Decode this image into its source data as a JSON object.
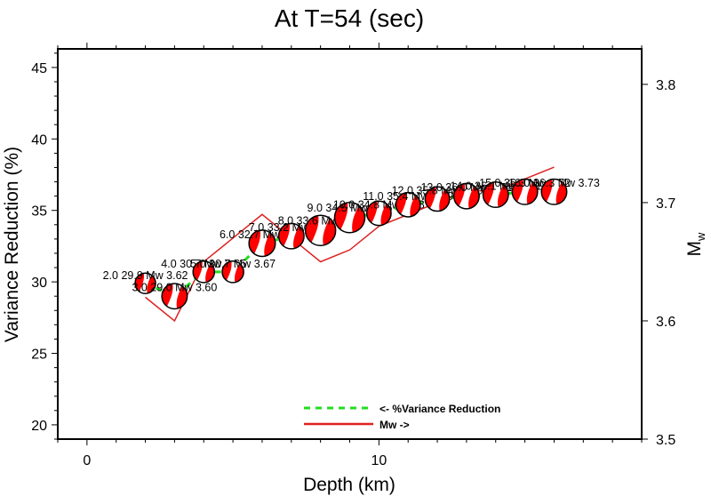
{
  "chart_data": {
    "type": "line",
    "title": "At T=54 (sec)",
    "xlabel": "Depth (km)",
    "ylabel": "Variance Reduction (%)",
    "y2label": "Mw",
    "xlim": [
      -1,
      19
    ],
    "ylim": [
      19,
      46.3
    ],
    "y2lim": [
      3.5,
      3.83
    ],
    "x_ticks": [
      0,
      10
    ],
    "y_ticks": [
      20,
      25,
      30,
      35,
      40,
      45
    ],
    "y2_ticks": [
      "3.5",
      "3.6",
      "3.7",
      "3.8"
    ],
    "grid": false,
    "legend_position": "bottom-center",
    "legend": [
      {
        "label": "<- %Variance Reduction",
        "color": "#22dd22",
        "style": "dashed"
      },
      {
        "label": "Mw ->",
        "color": "#dd2222",
        "style": "solid"
      }
    ],
    "x": [
      2,
      3,
      4,
      5,
      6,
      7,
      8,
      9,
      10,
      11,
      12,
      13,
      14,
      15,
      16
    ],
    "series": [
      {
        "name": "%Variance Reduction",
        "axis": "left",
        "values": [
          29.9,
          29.0,
          30.7,
          30.7,
          32.7,
          33.2,
          33.6,
          34.5,
          34.8,
          35.4,
          35.8,
          36.0,
          36.1,
          36.3,
          36.3
        ]
      },
      {
        "name": "Mw",
        "axis": "right",
        "values": [
          3.62,
          3.6,
          3.65,
          3.67,
          3.69,
          3.67,
          3.65,
          3.66,
          3.68,
          3.69,
          3.7,
          3.71,
          3.71,
          3.72,
          3.73
        ]
      }
    ],
    "beachball_sizes": [
      0.5,
      0.75,
      0.55,
      0.55,
      0.8,
      0.75,
      1.0,
      1.0,
      0.7,
      0.7,
      0.7,
      0.75,
      0.75,
      0.75,
      0.75
    ],
    "point_labels": [
      "2.0 29.9 Mw 3.62",
      "3.0 29.0 Mw 3.60",
      "4.0 30.7 Mw 3.65",
      "5.0 30.7 Mw 3.67",
      "6.0 32.7 Mw 3.69",
      "7.0 33.2 Mw 3.67",
      "8.0 33.6 Mw 3.65",
      "9.0 34.5 Mw 3.66",
      "10.0 34.8 Mw 3.68",
      "11.0 35.4 Mw 3.69",
      "12.0 35.8 Mw 3.70",
      "13.0 36.0 Mw 3.71",
      "14.0 36.1 Mw 3.71",
      "15.0 36.3 Mw 3.72",
      "16.0 36.3 Mw 3.73"
    ],
    "colors": {
      "vr": "#22dd22",
      "mw": "#dd2222",
      "beachball": "#ff0000"
    }
  }
}
